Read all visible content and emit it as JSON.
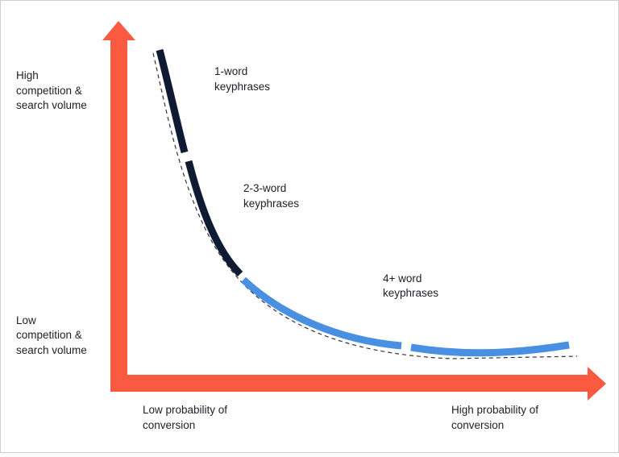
{
  "y_axis": {
    "high": [
      "High",
      "competition &",
      "search volume"
    ],
    "low": [
      "Low",
      "competition &",
      "search volume"
    ]
  },
  "x_axis": {
    "low": [
      "Low probability of",
      "conversion"
    ],
    "high": [
      "High probability of",
      "conversion"
    ]
  },
  "curve_labels": [
    [
      "1-word",
      "keyphrases"
    ],
    [
      "2-3-word",
      "keyphrases"
    ],
    [
      "4+ word",
      "keyphrases"
    ]
  ]
}
